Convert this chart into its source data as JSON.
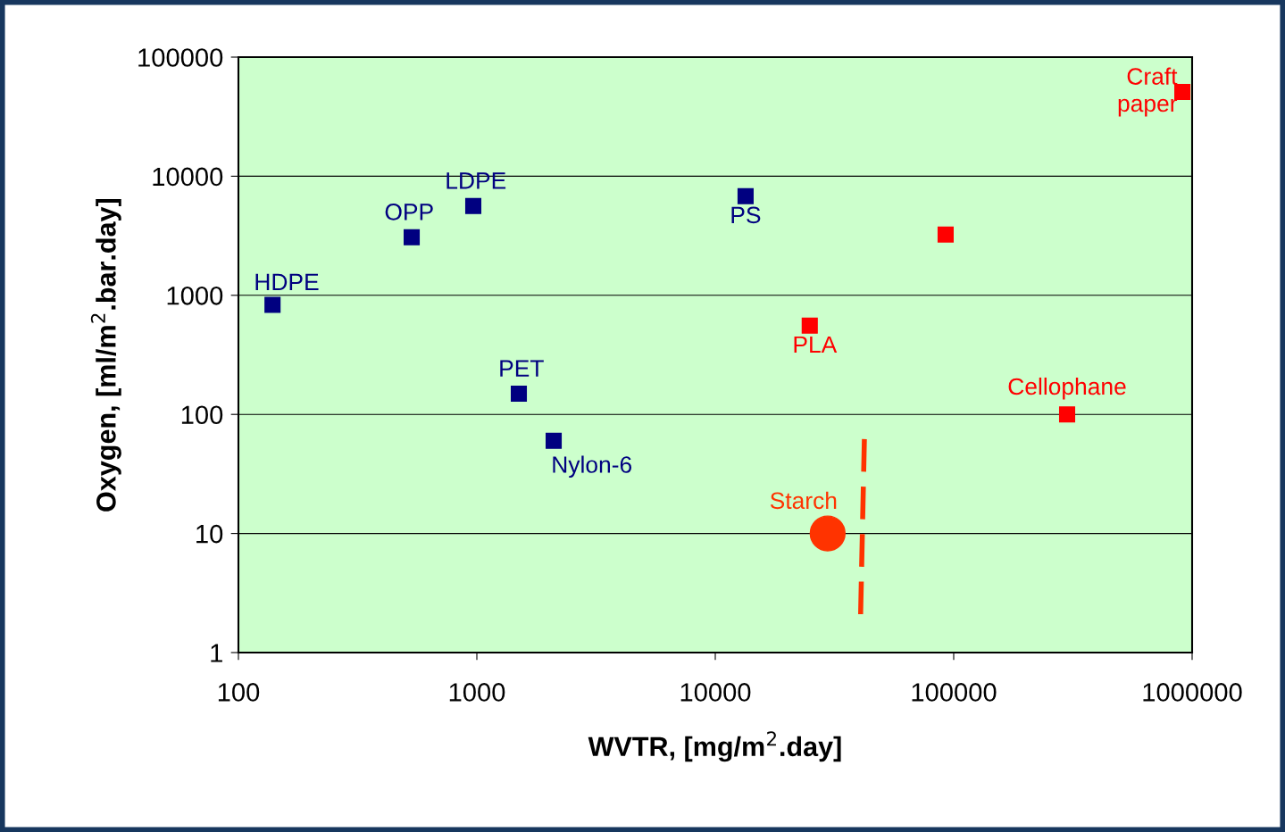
{
  "chart_data": {
    "type": "scatter",
    "xlabel": "WVTR, [mg/m$^{2}$.day]",
    "ylabel": "Oxygen, [ml/m$^{2}$.bar.day]",
    "log": "xy",
    "grid": "y",
    "marker": "square",
    "xlim": [
      100,
      1000000
    ],
    "xticks": [
      100,
      1000,
      10000,
      100000,
      1000000
    ],
    "ylim": [
      1,
      100000
    ],
    "yticks": [
      1,
      10,
      100,
      1000,
      10000,
      100000
    ],
    "series": [
      {
        "name": "HDPE",
        "color": "#000080",
        "x": [
          139
        ],
        "values": [
          830
        ]
      },
      {
        "name": "OPP",
        "color": "#000080",
        "x": [
          533
        ],
        "values": [
          3070
        ]
      },
      {
        "name": "LDPE",
        "color": "#000080",
        "x": [
          966
        ],
        "values": [
          5620
        ]
      },
      {
        "name": "PET",
        "color": "#000080",
        "x": [
          1500
        ],
        "values": [
          149
        ]
      },
      {
        "name": "Nylon-6",
        "color": "#000080",
        "x": [
          2100
        ],
        "values": [
          60
        ]
      },
      {
        "name": "PS",
        "color": "#000080",
        "x": [
          13400
        ],
        "values": [
          6800
        ]
      },
      {
        "name": "PLA",
        "color": "#ff0000",
        "x": [
          24900
        ],
        "values": [
          556
        ]
      },
      {
        "color": "#ff0000",
        "x": [
          92500
        ],
        "values": [
          3240
        ]
      },
      {
        "name": "Cellophane",
        "color": "#ff0000",
        "x": [
          299000
        ],
        "values": [
          100
        ]
      },
      {
        "name": "Craft\npaper",
        "color": "#ff0000",
        "x": [
          910000
        ],
        "values": [
          51000
        ]
      },
      {
        "name": "Starch",
        "color": "#ff3300",
        "marker": "circle",
        "x": [
          29600
        ],
        "values": [
          10
        ]
      },
      {
        "type": "line",
        "color": "#ff3300",
        "line_style": "dashed",
        "marker": "none",
        "x": [
          42200,
          40700
        ],
        "values": [
          62,
          2.1
        ]
      }
    ]
  }
}
